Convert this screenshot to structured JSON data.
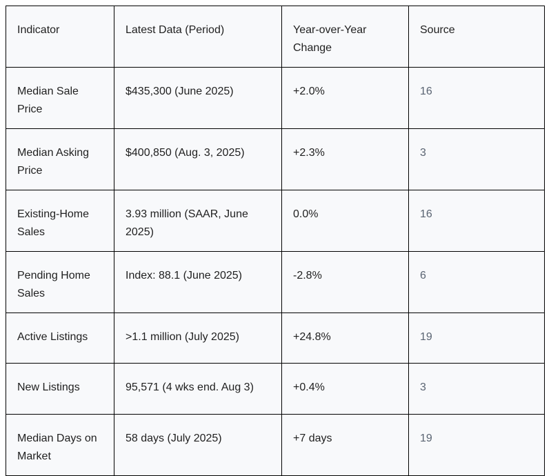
{
  "colors": {
    "cell_background": "#f8f9fb",
    "border": "#000000",
    "text": "#1f1f1f",
    "source_text": "#5a6472",
    "page_background": "#ffffff"
  },
  "table": {
    "columns": {
      "indicator": "Indicator",
      "latest": "Latest Data (Period)",
      "yoy": "Year-over-Year Change",
      "source": "Source"
    },
    "rows": [
      {
        "indicator": "Median Sale Price",
        "latest": "$435,300 (June 2025)",
        "yoy": "+2.0%",
        "source": "16"
      },
      {
        "indicator": "Median Asking Price",
        "latest": "$400,850 (Aug. 3, 2025)",
        "yoy": "+2.3%",
        "source": "3"
      },
      {
        "indicator": "Existing-Home Sales",
        "latest": "3.93 million (SAAR, June 2025)",
        "yoy": "0.0%",
        "source": "16"
      },
      {
        "indicator": "Pending Home Sales",
        "latest": "Index: 88.1 (June 2025)",
        "yoy": "-2.8%",
        "source": "6"
      },
      {
        "indicator": "Active Listings",
        "latest": ">1.1 million (July 2025)",
        "yoy": "+24.8%",
        "source": "19"
      },
      {
        "indicator": "New Listings",
        "latest": "95,571 (4 wks end. Aug 3)",
        "yoy": "+0.4%",
        "source": "3"
      },
      {
        "indicator": "Median Days on Market",
        "latest": "58 days (July 2025)",
        "yoy": "+7 days",
        "source": "19"
      }
    ]
  }
}
